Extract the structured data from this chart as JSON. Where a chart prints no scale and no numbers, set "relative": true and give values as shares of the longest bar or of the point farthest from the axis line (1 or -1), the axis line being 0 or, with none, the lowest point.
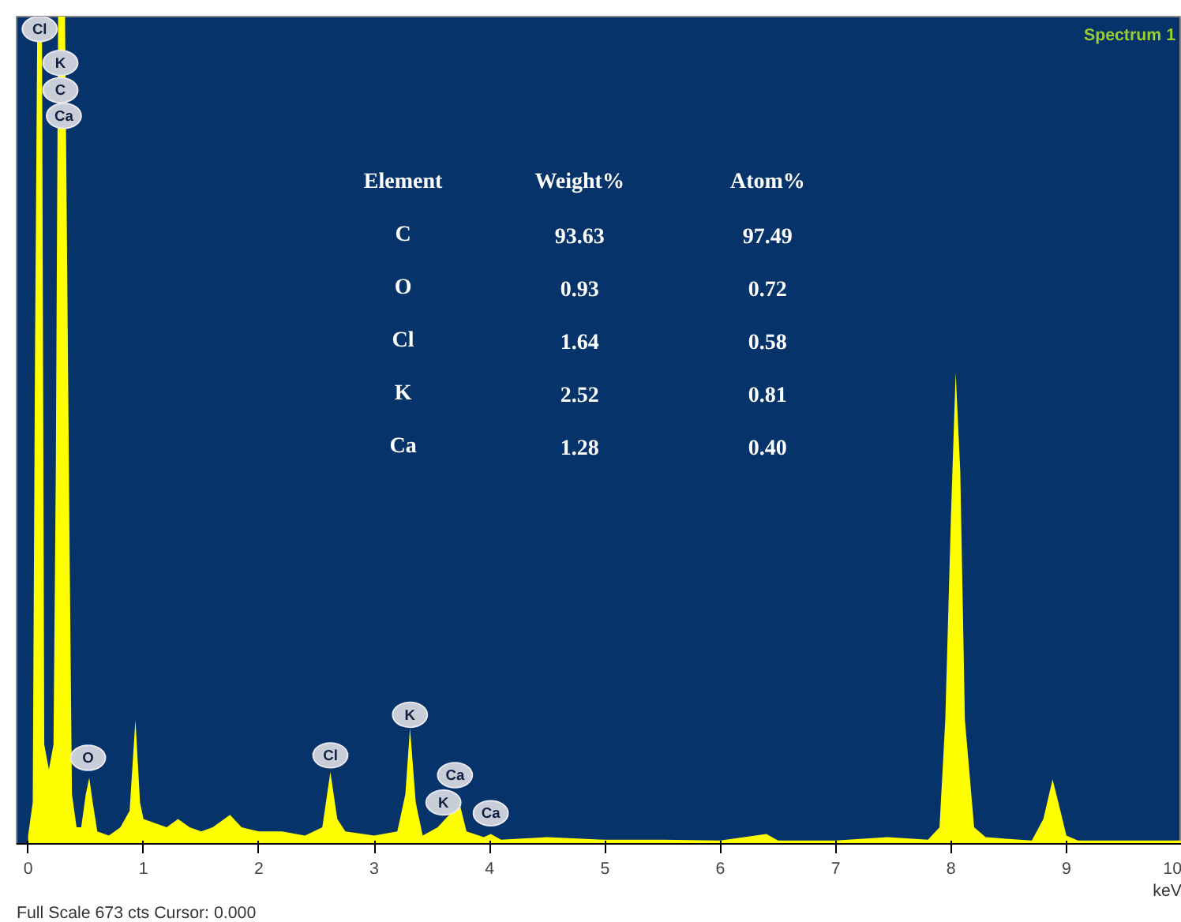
{
  "chart_data": {
    "type": "area",
    "title": "Spectrum 1",
    "xlabel": "keV",
    "relative": true,
    "x": [
      0,
      0.04,
      0.06,
      0.08,
      0.12,
      0.14,
      0.18,
      0.22,
      0.24,
      0.26,
      0.32,
      0.36,
      0.38,
      0.42,
      0.46,
      0.5,
      0.53,
      0.56,
      0.6,
      0.7,
      0.8,
      0.88,
      0.93,
      0.97,
      1.0,
      1.1,
      1.2,
      1.3,
      1.4,
      1.5,
      1.6,
      1.75,
      1.85,
      2.0,
      2.2,
      2.4,
      2.55,
      2.62,
      2.68,
      2.75,
      3.0,
      3.2,
      3.27,
      3.31,
      3.36,
      3.42,
      3.55,
      3.65,
      3.72,
      3.8,
      3.95,
      4.01,
      4.1,
      4.5,
      5.0,
      5.5,
      6.0,
      6.4,
      6.5,
      7.0,
      7.45,
      7.8,
      7.9,
      7.95,
      8.0,
      8.04,
      8.08,
      8.12,
      8.2,
      8.3,
      8.7,
      8.8,
      8.88,
      8.93,
      9.0,
      9.1,
      9.5,
      10.0
    ],
    "series": [
      {
        "color": "#ffff00",
        "values": [
          0.01,
          0.05,
          0.6,
          1,
          1,
          0.12,
          0.09,
          0.12,
          0.45,
          1,
          1,
          0.35,
          0.06,
          0.02,
          0.02,
          0.06,
          0.08,
          0.05,
          0.015,
          0.01,
          0.02,
          0.04,
          0.15,
          0.05,
          0.03,
          0.025,
          0.02,
          0.03,
          0.02,
          0.015,
          0.02,
          0.035,
          0.02,
          0.015,
          0.015,
          0.01,
          0.02,
          0.087,
          0.03,
          0.015,
          0.01,
          0.015,
          0.06,
          0.14,
          0.05,
          0.01,
          0.02,
          0.035,
          0.06,
          0.015,
          0.008,
          0.012,
          0.005,
          0.008,
          0.005,
          0.005,
          0.004,
          0.012,
          0.004,
          0.004,
          0.008,
          0.005,
          0.02,
          0.15,
          0.4,
          0.57,
          0.45,
          0.15,
          0.02,
          0.008,
          0.004,
          0.03,
          0.078,
          0.05,
          0.01,
          0.004,
          0.004,
          0.004
        ]
      }
    ],
    "xlim": [
      -0.1,
      10.0
    ],
    "xticks": [
      0,
      1,
      2,
      3,
      4,
      5,
      6,
      7,
      8,
      9,
      10
    ],
    "grid": false,
    "annotations": [
      {
        "text": "Cl",
        "x": 0.1,
        "y": 0.985
      },
      {
        "text": "K",
        "x": 0.28,
        "y": 0.944
      },
      {
        "text": "C",
        "x": 0.28,
        "y": 0.911
      },
      {
        "text": "Ca",
        "x": 0.31,
        "y": 0.88
      },
      {
        "text": "O",
        "x": 0.52,
        "y": 0.104
      },
      {
        "text": "Cl",
        "x": 2.62,
        "y": 0.107
      },
      {
        "text": "K",
        "x": 3.31,
        "y": 0.156
      },
      {
        "text": "Ca",
        "x": 3.7,
        "y": 0.083
      },
      {
        "text": "K",
        "x": 3.6,
        "y": 0.05
      },
      {
        "text": "Ca",
        "x": 4.01,
        "y": 0.037
      },
      "Element",
      "Weight%",
      "Atom%",
      "C",
      "93.63",
      "97.49",
      "O",
      "0.93",
      "0.72",
      "Cl",
      "1.64",
      "0.58",
      "K",
      "2.52",
      "0.81",
      "Ca",
      "1.28",
      "0.40",
      "Full Scale 673 cts Cursor: 0.000"
    ]
  }
}
